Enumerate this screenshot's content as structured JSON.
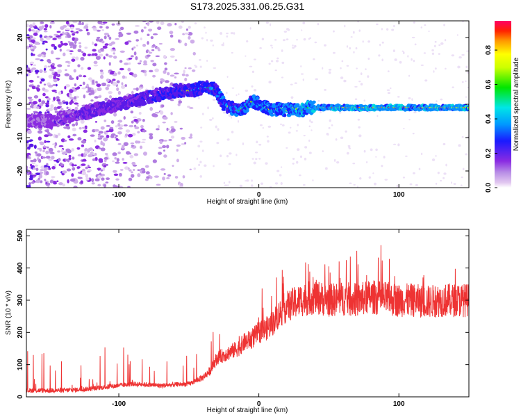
{
  "title": "S173.2025.331.06.25.G31",
  "chart_data": [
    {
      "type": "heatmap",
      "name": "spectrogram",
      "xlabel": "Height of straight line (km)",
      "ylabel": "Frequency (Hz)",
      "xlim": [
        -166,
        150
      ],
      "ylim": [
        -25,
        25
      ],
      "xticks": [
        -100,
        0,
        100
      ],
      "xtick_labels": [
        "-100",
        "0",
        "100"
      ],
      "yticks": [
        -20,
        -10,
        0,
        10,
        20
      ],
      "ytick_labels": [
        "-20",
        "-10",
        "0",
        "10",
        "20"
      ],
      "track": {
        "x": [
          -150,
          -140,
          -130,
          -120,
          -110,
          -100,
          -90,
          -80,
          -70,
          -60,
          -50,
          -40,
          -35,
          -30,
          -25,
          -20,
          -15,
          -10,
          -5,
          0,
          5,
          10,
          15,
          20,
          25,
          30,
          35,
          40,
          60,
          80,
          100,
          120,
          150
        ],
        "y": [
          -5,
          -4,
          -3,
          -2,
          -1,
          0,
          1,
          2,
          3,
          4,
          4,
          5,
          5,
          4,
          0,
          -1,
          -2,
          -1,
          1,
          0,
          -1,
          -2,
          -1,
          -2,
          -1,
          -2,
          -1,
          -1,
          -1,
          -1,
          -1,
          -1,
          -1
        ]
      },
      "colorbar": {
        "label": "Normalized spectral amplitude",
        "range": [
          0.0,
          0.97
        ],
        "ticks": [
          0.0,
          0.2,
          0.4,
          0.6,
          0.8
        ],
        "tick_labels": [
          "0.0",
          "0.2",
          "0.4",
          "0.6",
          "0.8"
        ]
      }
    },
    {
      "type": "line",
      "name": "snr",
      "xlabel": "Height of straight line (km)",
      "ylabel": "SNR (10 * v/v)",
      "xlim": [
        -166,
        150
      ],
      "ylim": [
        0,
        520
      ],
      "xticks": [
        -100,
        0,
        100
      ],
      "xtick_labels": [
        "-100",
        "0",
        "100"
      ],
      "yticks": [
        0,
        100,
        200,
        300,
        400,
        500
      ],
      "ytick_labels": [
        "0",
        "100",
        "200",
        "300",
        "400",
        "500"
      ],
      "color": "#ee3333",
      "series": [
        {
          "name": "SNR",
          "x": [
            -166,
            -150,
            -140,
            -130,
            -120,
            -110,
            -100,
            -90,
            -80,
            -70,
            -60,
            -50,
            -45,
            -40,
            -35,
            -30,
            -25,
            -20,
            -15,
            -10,
            -5,
            0,
            5,
            10,
            15,
            20,
            25,
            30,
            35,
            40,
            50,
            60,
            70,
            80,
            90,
            100,
            110,
            120,
            130,
            140,
            150
          ],
          "y": [
            20,
            20,
            20,
            22,
            25,
            30,
            35,
            40,
            38,
            35,
            38,
            40,
            50,
            60,
            80,
            120,
            130,
            140,
            150,
            170,
            180,
            200,
            210,
            230,
            260,
            280,
            290,
            300,
            305,
            310,
            300,
            305,
            300,
            310,
            305,
            300,
            300,
            295,
            300,
            300,
            300
          ]
        }
      ]
    }
  ]
}
